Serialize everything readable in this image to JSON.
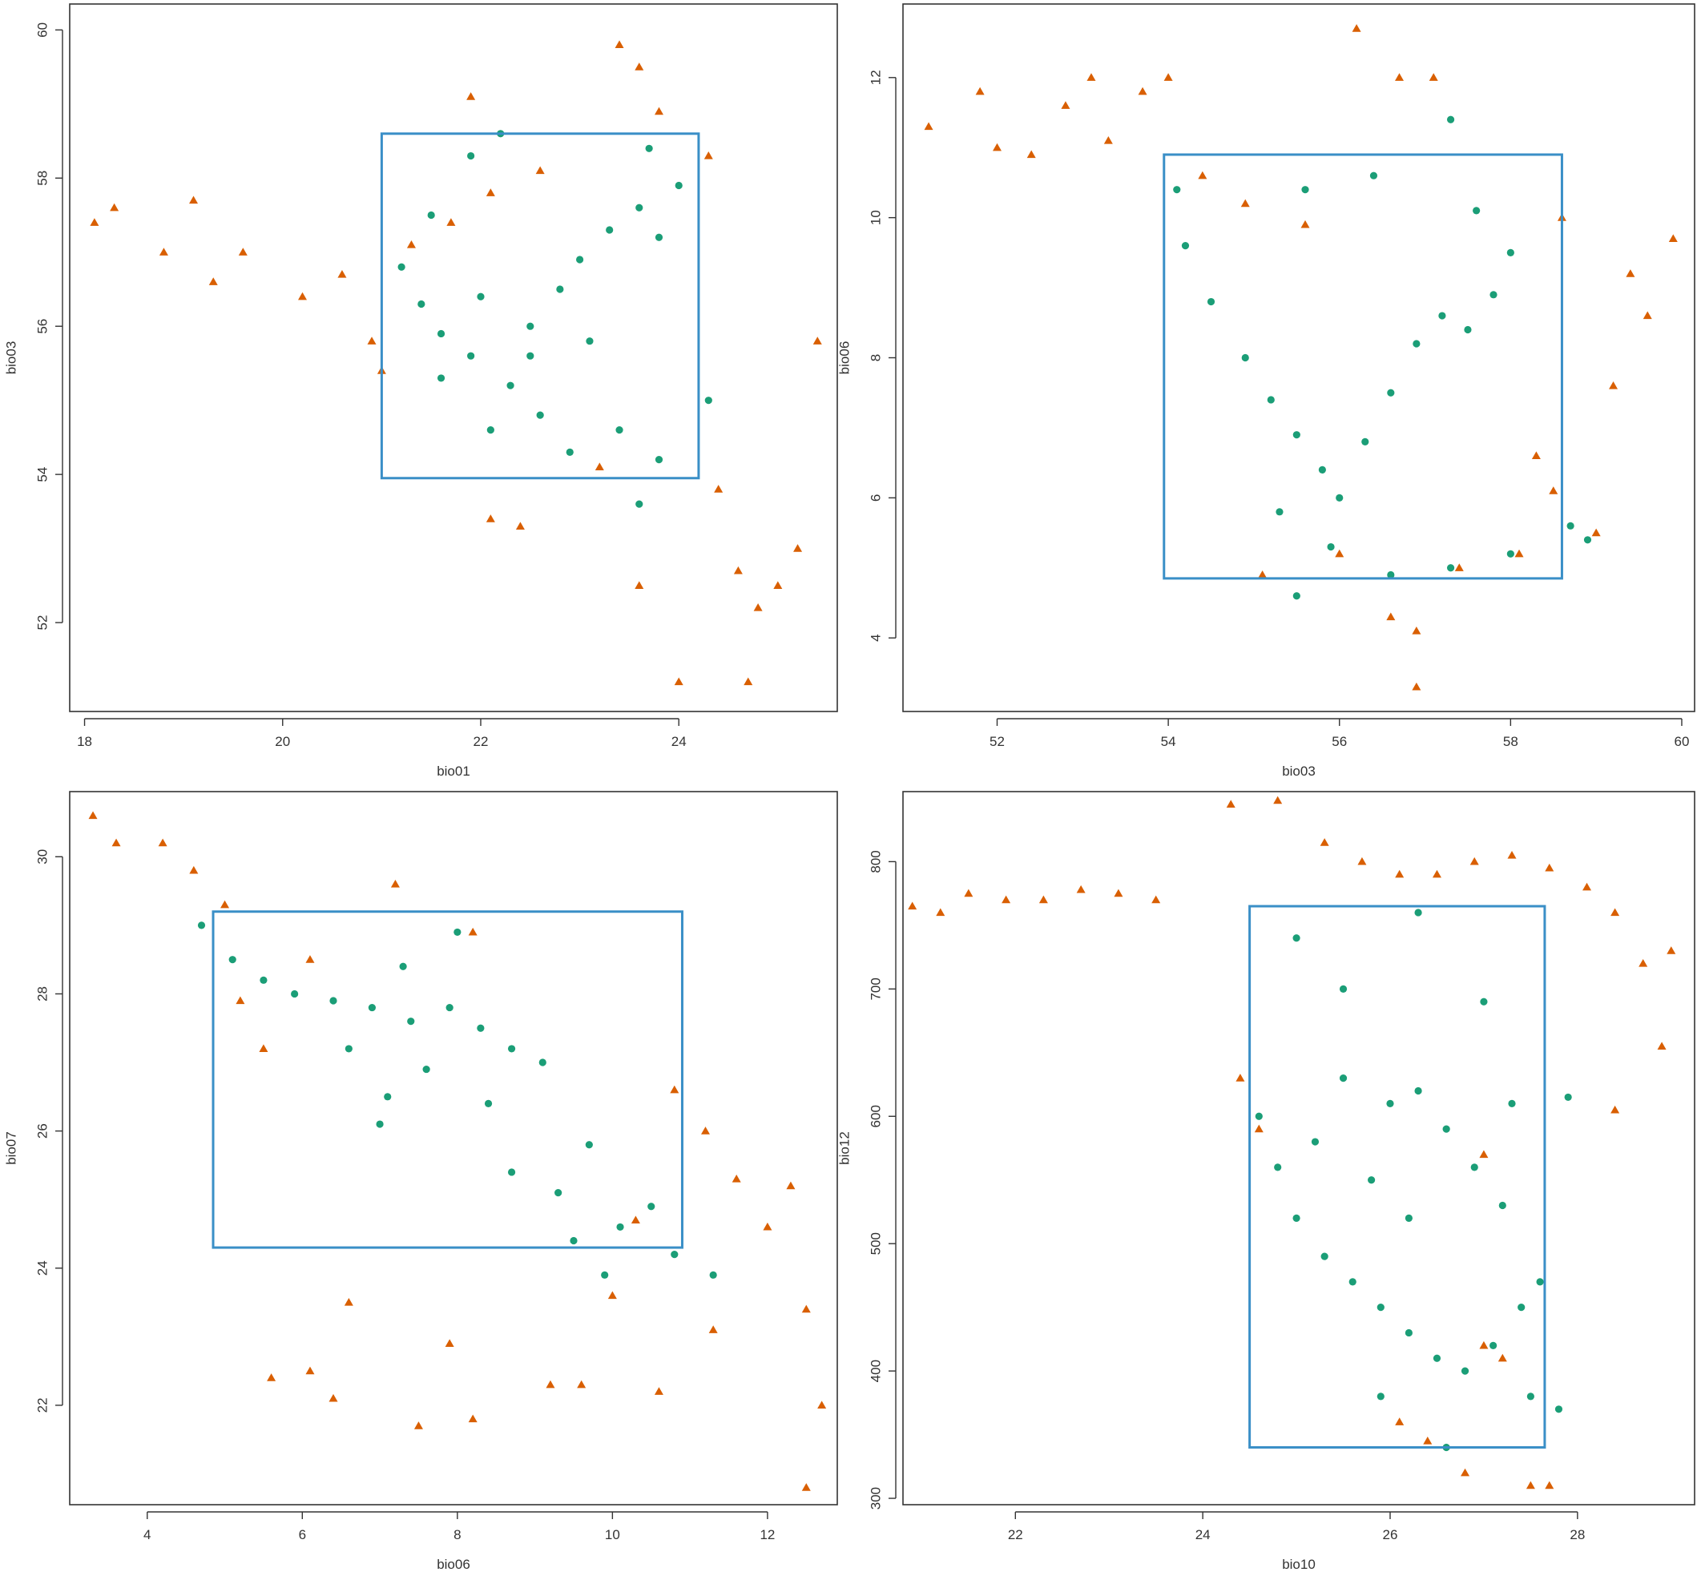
{
  "colors": {
    "series_circle": "#1b9e77",
    "series_triangle": "#d95f02",
    "box": "#3a8fc7"
  },
  "chart_data": [
    {
      "type": "scatter",
      "xlabel": "bio01",
      "ylabel": "bio03",
      "xlim": [
        17.85,
        25.6
      ],
      "ylim": [
        50.8,
        60.35
      ],
      "xticks": [
        "18",
        "20",
        "22",
        "24"
      ],
      "yticks": [
        "52",
        "54",
        "56",
        "58",
        "60"
      ],
      "rect": {
        "x0": 21.0,
        "x1": 24.2,
        "y0": 53.95,
        "y1": 58.6
      },
      "series": [
        {
          "marker": "circle",
          "points": [
            [
              21.2,
              56.8
            ],
            [
              21.4,
              56.3
            ],
            [
              21.6,
              55.9
            ],
            [
              21.9,
              55.6
            ],
            [
              22.0,
              56.4
            ],
            [
              22.3,
              55.2
            ],
            [
              22.5,
              56.0
            ],
            [
              22.8,
              56.5
            ],
            [
              23.0,
              56.9
            ],
            [
              23.3,
              57.3
            ],
            [
              23.6,
              57.6
            ],
            [
              23.8,
              57.2
            ],
            [
              24.0,
              57.9
            ],
            [
              23.7,
              58.4
            ],
            [
              22.6,
              54.8
            ],
            [
              22.9,
              54.3
            ],
            [
              23.4,
              54.6
            ],
            [
              23.8,
              54.2
            ],
            [
              21.5,
              57.5
            ],
            [
              21.9,
              58.3
            ],
            [
              22.2,
              58.6
            ],
            [
              22.5,
              55.6
            ],
            [
              23.1,
              55.8
            ],
            [
              21.6,
              55.3
            ],
            [
              22.1,
              54.6
            ],
            [
              23.6,
              53.6
            ],
            [
              24.3,
              55.0
            ]
          ]
        },
        {
          "marker": "triangle",
          "points": [
            [
              18.1,
              57.4
            ],
            [
              18.3,
              57.6
            ],
            [
              18.8,
              57.0
            ],
            [
              19.1,
              57.7
            ],
            [
              19.3,
              56.6
            ],
            [
              19.6,
              57.0
            ],
            [
              20.2,
              56.4
            ],
            [
              20.6,
              56.7
            ],
            [
              20.9,
              55.8
            ],
            [
              21.0,
              55.4
            ],
            [
              21.3,
              57.1
            ],
            [
              21.7,
              57.4
            ],
            [
              21.9,
              59.1
            ],
            [
              22.1,
              57.8
            ],
            [
              22.6,
              58.1
            ],
            [
              23.4,
              59.8
            ],
            [
              23.6,
              59.5
            ],
            [
              23.8,
              58.9
            ],
            [
              24.3,
              58.3
            ],
            [
              22.1,
              53.4
            ],
            [
              22.4,
              53.3
            ],
            [
              24.4,
              53.8
            ],
            [
              24.6,
              52.7
            ],
            [
              24.8,
              52.2
            ],
            [
              25.0,
              52.5
            ],
            [
              25.2,
              53.0
            ],
            [
              25.4,
              55.8
            ],
            [
              24.0,
              51.2
            ],
            [
              24.7,
              51.2
            ],
            [
              23.6,
              52.5
            ],
            [
              23.2,
              54.1
            ]
          ]
        }
      ]
    },
    {
      "type": "scatter",
      "xlabel": "bio03",
      "ylabel": "bio06",
      "xlim": [
        50.9,
        60.15
      ],
      "ylim": [
        2.95,
        13.05
      ],
      "xticks": [
        "52",
        "54",
        "56",
        "58",
        "60"
      ],
      "yticks": [
        "4",
        "6",
        "8",
        "10",
        "12"
      ],
      "rect": {
        "x0": 53.95,
        "x1": 58.6,
        "y0": 4.85,
        "y1": 10.9
      },
      "series": [
        {
          "marker": "circle",
          "points": [
            [
              54.2,
              9.6
            ],
            [
              54.5,
              8.8
            ],
            [
              54.9,
              8.0
            ],
            [
              55.2,
              7.4
            ],
            [
              55.5,
              6.9
            ],
            [
              55.8,
              6.4
            ],
            [
              56.0,
              6.0
            ],
            [
              56.3,
              6.8
            ],
            [
              56.6,
              7.5
            ],
            [
              56.9,
              8.2
            ],
            [
              57.2,
              8.6
            ],
            [
              57.5,
              8.4
            ],
            [
              57.8,
              8.9
            ],
            [
              58.0,
              9.5
            ],
            [
              55.3,
              5.8
            ],
            [
              55.9,
              5.3
            ],
            [
              56.6,
              4.9
            ],
            [
              57.3,
              5.0
            ],
            [
              58.0,
              5.2
            ],
            [
              58.7,
              5.6
            ],
            [
              58.9,
              5.4
            ],
            [
              55.6,
              10.4
            ],
            [
              56.4,
              10.6
            ],
            [
              57.6,
              10.1
            ],
            [
              54.1,
              10.4
            ],
            [
              55.5,
              4.6
            ],
            [
              57.3,
              11.4
            ]
          ]
        },
        {
          "marker": "triangle",
          "points": [
            [
              51.2,
              11.3
            ],
            [
              51.8,
              11.8
            ],
            [
              52.0,
              11.0
            ],
            [
              52.4,
              10.9
            ],
            [
              52.8,
              11.6
            ],
            [
              53.1,
              12.0
            ],
            [
              53.3,
              11.1
            ],
            [
              53.7,
              11.8
            ],
            [
              54.0,
              12.0
            ],
            [
              54.4,
              10.6
            ],
            [
              54.9,
              10.2
            ],
            [
              55.6,
              9.9
            ],
            [
              56.2,
              12.7
            ],
            [
              56.7,
              12.0
            ],
            [
              57.1,
              12.0
            ],
            [
              56.0,
              5.2
            ],
            [
              56.6,
              4.3
            ],
            [
              56.9,
              4.1
            ],
            [
              57.4,
              5.0
            ],
            [
              58.1,
              5.2
            ],
            [
              58.3,
              6.6
            ],
            [
              58.5,
              6.1
            ],
            [
              59.0,
              5.5
            ],
            [
              59.4,
              9.2
            ],
            [
              59.6,
              8.6
            ],
            [
              59.9,
              9.7
            ],
            [
              56.9,
              3.3
            ],
            [
              58.6,
              10.0
            ],
            [
              59.2,
              7.6
            ],
            [
              55.1,
              4.9
            ]
          ]
        }
      ]
    },
    {
      "type": "scatter",
      "xlabel": "bio06",
      "ylabel": "bio07",
      "xlim": [
        3.0,
        12.9
      ],
      "ylim": [
        20.55,
        30.95
      ],
      "xticks": [
        "4",
        "6",
        "8",
        "10",
        "12"
      ],
      "yticks": [
        "22",
        "24",
        "26",
        "28",
        "30"
      ],
      "rect": {
        "x0": 4.85,
        "x1": 10.9,
        "y0": 24.3,
        "y1": 29.2
      },
      "series": [
        {
          "marker": "circle",
          "points": [
            [
              4.7,
              29.0
            ],
            [
              5.1,
              28.5
            ],
            [
              5.5,
              28.2
            ],
            [
              5.9,
              28.0
            ],
            [
              6.4,
              27.9
            ],
            [
              6.9,
              27.8
            ],
            [
              7.4,
              27.6
            ],
            [
              7.9,
              27.8
            ],
            [
              8.3,
              27.5
            ],
            [
              8.7,
              27.2
            ],
            [
              9.1,
              27.0
            ],
            [
              8.0,
              28.9
            ],
            [
              7.3,
              28.4
            ],
            [
              6.6,
              27.2
            ],
            [
              7.1,
              26.5
            ],
            [
              7.6,
              26.9
            ],
            [
              8.4,
              26.4
            ],
            [
              8.7,
              25.4
            ],
            [
              9.3,
              25.1
            ],
            [
              9.7,
              25.8
            ],
            [
              10.1,
              24.6
            ],
            [
              10.5,
              24.9
            ],
            [
              10.8,
              24.2
            ],
            [
              11.3,
              23.9
            ],
            [
              9.5,
              24.4
            ],
            [
              9.9,
              23.9
            ],
            [
              7.0,
              26.1
            ]
          ]
        },
        {
          "marker": "triangle",
          "points": [
            [
              3.3,
              30.6
            ],
            [
              3.6,
              30.2
            ],
            [
              4.2,
              30.2
            ],
            [
              4.6,
              29.8
            ],
            [
              5.0,
              29.3
            ],
            [
              5.2,
              27.9
            ],
            [
              5.5,
              27.2
            ],
            [
              6.1,
              28.5
            ],
            [
              7.2,
              29.6
            ],
            [
              8.2,
              28.9
            ],
            [
              10.8,
              26.6
            ],
            [
              11.2,
              26.0
            ],
            [
              11.6,
              25.3
            ],
            [
              12.0,
              24.6
            ],
            [
              12.3,
              25.2
            ],
            [
              10.3,
              24.7
            ],
            [
              10.0,
              23.6
            ],
            [
              9.6,
              22.3
            ],
            [
              10.6,
              22.2
            ],
            [
              11.3,
              23.1
            ],
            [
              12.5,
              23.4
            ],
            [
              12.7,
              22.0
            ],
            [
              12.5,
              20.8
            ],
            [
              5.6,
              22.4
            ],
            [
              6.1,
              22.5
            ],
            [
              6.4,
              22.1
            ],
            [
              6.6,
              23.5
            ],
            [
              7.5,
              21.7
            ],
            [
              8.2,
              21.8
            ],
            [
              7.9,
              22.9
            ],
            [
              9.2,
              22.3
            ]
          ]
        }
      ]
    },
    {
      "type": "scatter",
      "xlabel": "bio10",
      "ylabel": "bio12",
      "xlim": [
        20.8,
        29.25
      ],
      "ylim": [
        295,
        855
      ],
      "xticks": [
        "22",
        "24",
        "26",
        "28"
      ],
      "yticks": [
        "300",
        "400",
        "500",
        "600",
        "700",
        "800"
      ],
      "rect": {
        "x0": 24.5,
        "x1": 27.65,
        "y0": 340,
        "y1": 765
      },
      "series": [
        {
          "marker": "circle",
          "points": [
            [
              24.6,
              600
            ],
            [
              24.8,
              560
            ],
            [
              25.0,
              520
            ],
            [
              25.3,
              490
            ],
            [
              25.6,
              470
            ],
            [
              25.9,
              450
            ],
            [
              26.2,
              430
            ],
            [
              26.5,
              410
            ],
            [
              26.8,
              400
            ],
            [
              27.1,
              420
            ],
            [
              27.4,
              450
            ],
            [
              27.6,
              470
            ],
            [
              26.0,
              610
            ],
            [
              26.3,
              620
            ],
            [
              26.6,
              590
            ],
            [
              26.9,
              560
            ],
            [
              27.2,
              530
            ],
            [
              25.5,
              630
            ],
            [
              25.2,
              580
            ],
            [
              25.8,
              550
            ],
            [
              26.2,
              520
            ],
            [
              25.0,
              740
            ],
            [
              25.5,
              700
            ],
            [
              26.3,
              760
            ],
            [
              27.0,
              690
            ],
            [
              27.5,
              380
            ],
            [
              27.8,
              370
            ],
            [
              25.9,
              380
            ],
            [
              26.6,
              340
            ],
            [
              27.3,
              610
            ],
            [
              27.9,
              615
            ]
          ]
        },
        {
          "marker": "triangle",
          "points": [
            [
              20.9,
              765
            ],
            [
              21.2,
              760
            ],
            [
              21.5,
              775
            ],
            [
              21.9,
              770
            ],
            [
              22.3,
              770
            ],
            [
              22.7,
              778
            ],
            [
              23.1,
              775
            ],
            [
              23.5,
              770
            ],
            [
              24.3,
              845
            ],
            [
              24.8,
              848
            ],
            [
              25.3,
              815
            ],
            [
              25.7,
              800
            ],
            [
              26.1,
              790
            ],
            [
              26.5,
              790
            ],
            [
              26.9,
              800
            ],
            [
              27.3,
              805
            ],
            [
              27.7,
              795
            ],
            [
              28.1,
              780
            ],
            [
              28.4,
              760
            ],
            [
              28.7,
              720
            ],
            [
              29.0,
              730
            ],
            [
              28.9,
              655
            ],
            [
              24.4,
              630
            ],
            [
              24.6,
              590
            ],
            [
              27.0,
              420
            ],
            [
              27.2,
              410
            ],
            [
              26.4,
              345
            ],
            [
              26.8,
              320
            ],
            [
              26.1,
              360
            ],
            [
              27.5,
              310
            ],
            [
              27.7,
              310
            ],
            [
              27.0,
              570
            ],
            [
              28.4,
              605
            ]
          ]
        }
      ]
    }
  ]
}
